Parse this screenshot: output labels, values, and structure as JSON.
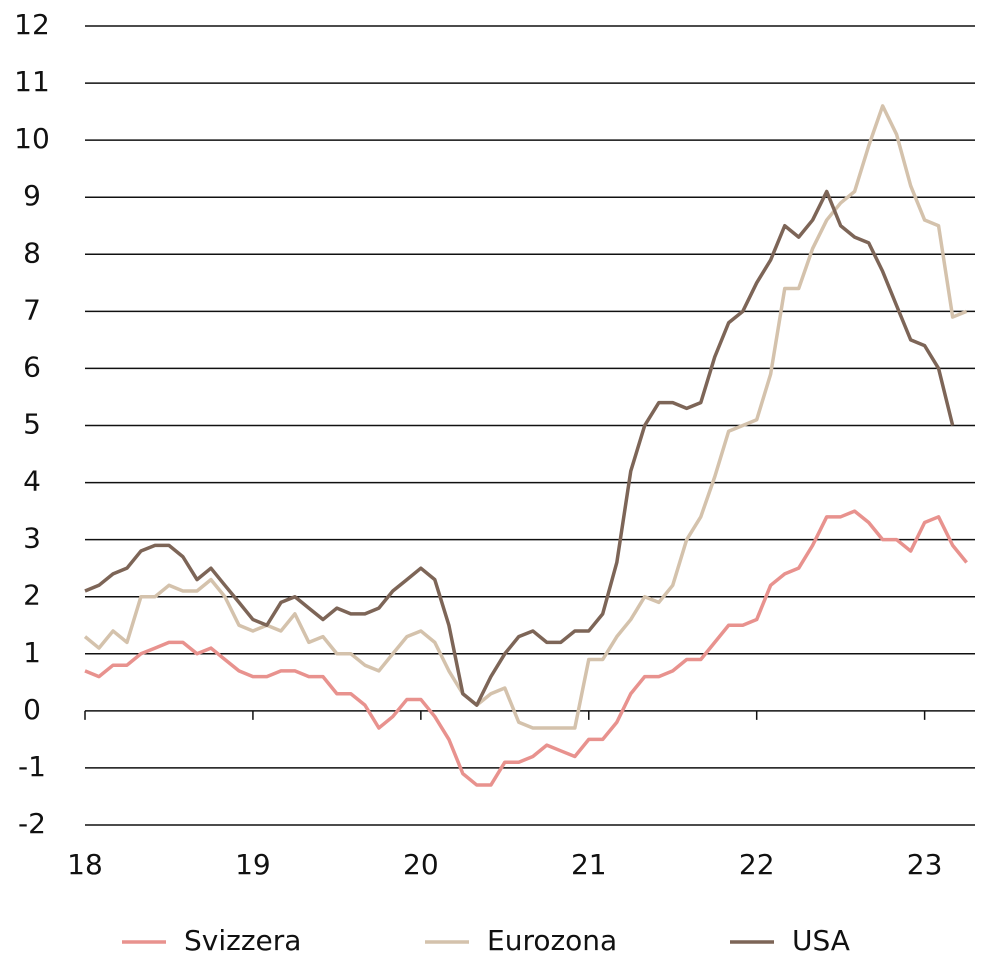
{
  "chart_data": {
    "type": "line",
    "x": [
      18,
      18.083,
      18.167,
      18.25,
      18.333,
      18.417,
      18.5,
      18.583,
      18.667,
      18.75,
      18.833,
      18.917,
      19,
      19.083,
      19.167,
      19.25,
      19.333,
      19.417,
      19.5,
      19.583,
      19.667,
      19.75,
      19.833,
      19.917,
      20,
      20.083,
      20.167,
      20.25,
      20.333,
      20.417,
      20.5,
      20.583,
      20.667,
      20.75,
      20.833,
      20.917,
      21,
      21.083,
      21.167,
      21.25,
      21.333,
      21.417,
      21.5,
      21.583,
      21.667,
      21.75,
      21.833,
      21.917,
      22,
      22.083,
      22.167,
      22.25,
      22.333,
      22.417,
      22.5,
      22.583,
      22.667,
      22.75,
      22.833,
      22.917,
      23,
      23.083,
      23.167,
      23.25
    ],
    "series": [
      {
        "name": "Svizzera",
        "color": "#e8928e",
        "values": [
          0.7,
          0.6,
          0.8,
          0.8,
          1.0,
          1.1,
          1.2,
          1.2,
          1.0,
          1.1,
          0.9,
          0.7,
          0.6,
          0.6,
          0.7,
          0.7,
          0.6,
          0.6,
          0.3,
          0.3,
          0.1,
          -0.3,
          -0.1,
          0.2,
          0.2,
          -0.1,
          -0.5,
          -1.1,
          -1.3,
          -1.3,
          -0.9,
          -0.9,
          -0.8,
          -0.6,
          -0.7,
          -0.8,
          -0.5,
          -0.5,
          -0.2,
          0.3,
          0.6,
          0.6,
          0.7,
          0.9,
          0.9,
          1.2,
          1.5,
          1.5,
          1.6,
          2.2,
          2.4,
          2.5,
          2.9,
          3.4,
          3.4,
          3.5,
          3.3,
          3.0,
          3.0,
          2.8,
          3.3,
          3.4,
          2.9,
          2.6
        ]
      },
      {
        "name": "Eurozona",
        "color": "#d4c2ac",
        "values": [
          1.3,
          1.1,
          1.4,
          1.2,
          2.0,
          2.0,
          2.2,
          2.1,
          2.1,
          2.3,
          2.0,
          1.5,
          1.4,
          1.5,
          1.4,
          1.7,
          1.2,
          1.3,
          1.0,
          1.0,
          0.8,
          0.7,
          1.0,
          1.3,
          1.4,
          1.2,
          0.7,
          0.3,
          0.1,
          0.3,
          0.4,
          -0.2,
          -0.3,
          -0.3,
          -0.3,
          -0.3,
          0.9,
          0.9,
          1.3,
          1.6,
          2.0,
          1.9,
          2.2,
          3.0,
          3.4,
          4.1,
          4.9,
          5.0,
          5.1,
          5.9,
          7.4,
          7.4,
          8.1,
          8.6,
          8.9,
          9.1,
          9.9,
          10.6,
          10.1,
          9.2,
          8.6,
          8.5,
          6.9,
          7.0
        ]
      },
      {
        "name": "USA",
        "color": "#7d6557",
        "values": [
          2.1,
          2.2,
          2.4,
          2.5,
          2.8,
          2.9,
          2.9,
          2.7,
          2.3,
          2.5,
          2.2,
          1.9,
          1.6,
          1.5,
          1.9,
          2.0,
          1.8,
          1.6,
          1.8,
          1.7,
          1.7,
          1.8,
          2.1,
          2.3,
          2.5,
          2.3,
          1.5,
          0.3,
          0.1,
          0.6,
          1.0,
          1.3,
          1.4,
          1.2,
          1.2,
          1.4,
          1.4,
          1.7,
          2.6,
          4.2,
          5.0,
          5.4,
          5.4,
          5.3,
          5.4,
          6.2,
          6.8,
          7.0,
          7.5,
          7.9,
          8.5,
          8.3,
          8.6,
          9.1,
          8.5,
          8.3,
          8.2,
          7.7,
          7.1,
          6.5,
          6.4,
          6.0,
          5.0,
          null
        ]
      }
    ],
    "xlim": [
      18,
      23.3
    ],
    "xticks": [
      18,
      19,
      20,
      21,
      22,
      23
    ],
    "ylim": [
      -2,
      12
    ],
    "yticks": [
      -2,
      -1,
      0,
      1,
      2,
      3,
      4,
      5,
      6,
      7,
      8,
      9,
      10,
      11,
      12
    ],
    "grid": true,
    "legend": "bottom"
  }
}
